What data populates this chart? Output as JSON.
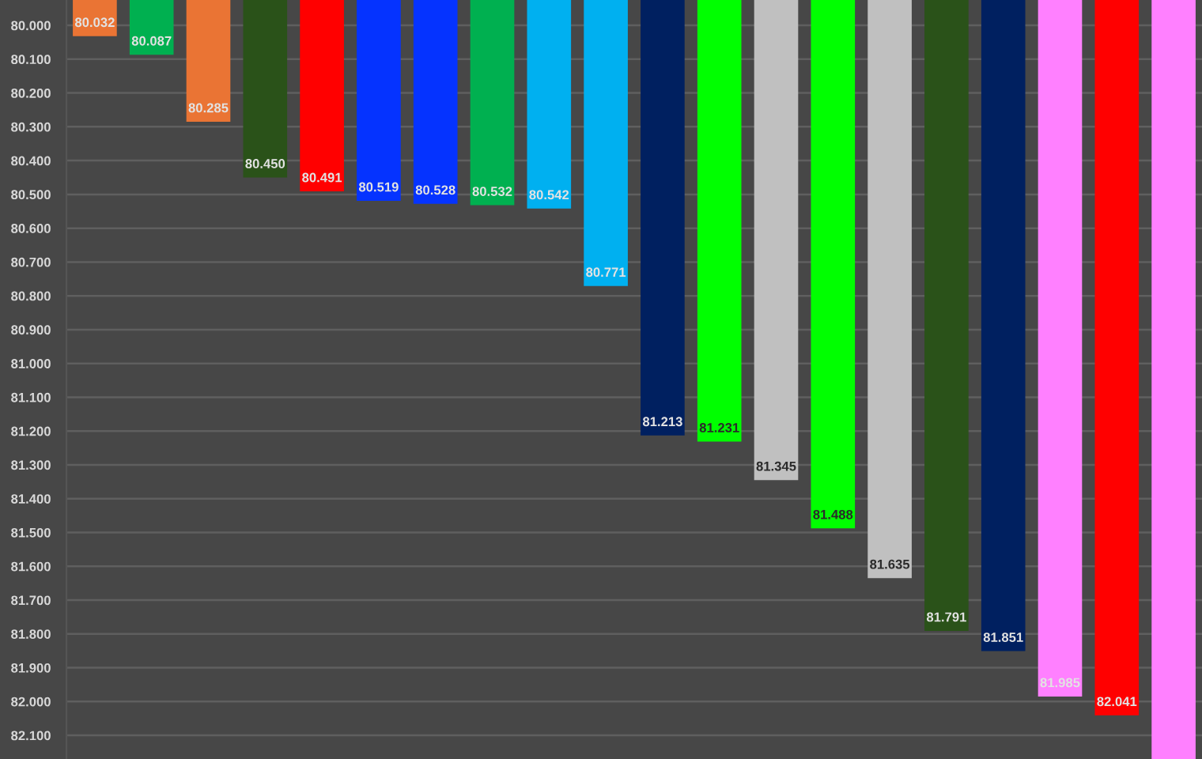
{
  "chart_data": {
    "type": "bar",
    "categories": [
      null,
      null,
      null,
      null,
      null,
      null,
      null,
      null,
      null,
      null,
      null,
      null,
      null,
      null,
      null,
      null,
      null,
      null,
      null,
      null
    ],
    "values": [
      80.032,
      80.087,
      80.285,
      80.45,
      80.491,
      80.519,
      80.528,
      80.532,
      80.542,
      80.771,
      81.213,
      81.231,
      81.345,
      81.488,
      81.635,
      81.791,
      81.851,
      81.985,
      82.041,
      82.17
    ],
    "value_labels": [
      "80.032",
      "80.087",
      "80.285",
      "80.450",
      "80.491",
      "80.519",
      "80.528",
      "80.532",
      "80.542",
      "80.771",
      "81.213",
      "81.231",
      "81.345",
      "81.488",
      "81.635",
      "81.791",
      "81.851",
      "81.985",
      "82.041",
      null
    ],
    "colors": [
      "#ea7434",
      "#00b050",
      "#ea7434",
      "#2a5219",
      "#ff0000",
      "#0533ff",
      "#0533ff",
      "#00b050",
      "#00b0f0",
      "#00b0f0",
      "#002060",
      "#00ff00",
      "#c0c0c0",
      "#00ff00",
      "#c0c0c0",
      "#2a5219",
      "#002060",
      "#ff80ff",
      "#ff0000",
      "#ff80ff"
    ],
    "ylim": [
      82.17,
      79.925
    ],
    "yticks": [
      {
        "value": 80.0,
        "label": "80.000"
      },
      {
        "value": 80.1,
        "label": "80.100"
      },
      {
        "value": 80.2,
        "label": "80.200"
      },
      {
        "value": 80.3,
        "label": "80.300"
      },
      {
        "value": 80.4,
        "label": "80.400"
      },
      {
        "value": 80.5,
        "label": "80.500"
      },
      {
        "value": 80.6,
        "label": "80.600"
      },
      {
        "value": 80.7,
        "label": "80.700"
      },
      {
        "value": 80.8,
        "label": "80.800"
      },
      {
        "value": 80.9,
        "label": "80.900"
      },
      {
        "value": 81.0,
        "label": "81.000"
      },
      {
        "value": 81.1,
        "label": "81.100"
      },
      {
        "value": 81.2,
        "label": "81.200"
      },
      {
        "value": 81.3,
        "label": "81.300"
      },
      {
        "value": 81.4,
        "label": "81.400"
      },
      {
        "value": 81.5,
        "label": "81.500"
      },
      {
        "value": 81.6,
        "label": "81.600"
      },
      {
        "value": 81.7,
        "label": "81.700"
      },
      {
        "value": 81.8,
        "label": "81.800"
      },
      {
        "value": 81.9,
        "label": "81.900"
      },
      {
        "value": 82.0,
        "label": "82.000"
      },
      {
        "value": 82.1,
        "label": "82.100"
      }
    ],
    "grid": "y",
    "tick_labels": "y"
  }
}
